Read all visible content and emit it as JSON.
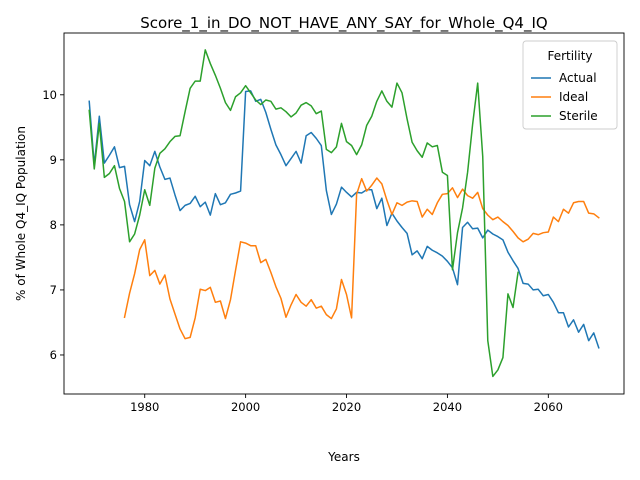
{
  "chart_data": {
    "type": "line",
    "title": "Score_1_in_DO_NOT_HAVE_ANY_SAY_for_Whole_Q4_IQ",
    "xlabel": "Years",
    "ylabel": "% of Whole Q4_IQ Population",
    "xlim": [
      1964,
      2075
    ],
    "ylim": [
      5.4,
      10.95
    ],
    "xticks": [
      1980,
      2000,
      2020,
      2040,
      2060
    ],
    "yticks": [
      6,
      7,
      8,
      9,
      10
    ],
    "grid": false,
    "legend": {
      "title": "Fertility",
      "placement": "top-right"
    },
    "series": [
      {
        "name": "Actual",
        "color": "#1f77b4",
        "x": [
          1969,
          1970,
          1971,
          1972,
          1973,
          1974,
          1975,
          1976,
          1977,
          1978,
          1979,
          1980,
          1981,
          1982,
          1983,
          1984,
          1985,
          1986,
          1987,
          1988,
          1989,
          1990,
          1991,
          1992,
          1993,
          1994,
          1995,
          1996,
          1997,
          1998,
          1999,
          2000,
          2001,
          2002,
          2003,
          2004,
          2005,
          2006,
          2007,
          2008,
          2009,
          2010,
          2011,
          2012,
          2013,
          2014,
          2015,
          2016,
          2017,
          2018,
          2019,
          2020,
          2021,
          2022,
          2023,
          2024,
          2025,
          2026,
          2027,
          2028,
          2029,
          2030,
          2031,
          2032,
          2033,
          2034,
          2035,
          2036,
          2037,
          2038,
          2039,
          2040,
          2041,
          2042,
          2043,
          2044,
          2045,
          2046,
          2047,
          2048,
          2049,
          2050,
          2051,
          2052,
          2053,
          2054,
          2055,
          2056,
          2057,
          2058,
          2059,
          2060,
          2061,
          2062,
          2063,
          2064,
          2065,
          2066,
          2067,
          2068,
          2069,
          2070
        ],
        "values": [
          9.9,
          8.92,
          9.67,
          8.95,
          9.07,
          9.2,
          8.88,
          8.9,
          8.31,
          8.05,
          8.36,
          8.99,
          8.91,
          9.13,
          8.89,
          8.7,
          8.72,
          8.46,
          8.22,
          8.3,
          8.33,
          8.44,
          8.28,
          8.35,
          8.15,
          8.48,
          8.31,
          8.34,
          8.47,
          8.49,
          8.52,
          10.05,
          10.06,
          9.9,
          9.93,
          9.73,
          9.47,
          9.23,
          9.08,
          8.91,
          9.02,
          9.13,
          8.95,
          9.37,
          9.42,
          9.33,
          9.22,
          8.53,
          8.16,
          8.32,
          8.58,
          8.5,
          8.43,
          8.5,
          8.49,
          8.54,
          8.54,
          8.25,
          8.41,
          7.99,
          8.18,
          8.06,
          7.96,
          7.87,
          7.54,
          7.6,
          7.48,
          7.67,
          7.61,
          7.57,
          7.52,
          7.44,
          7.34,
          7.08,
          7.96,
          8.04,
          7.94,
          7.95,
          7.8,
          7.92,
          7.86,
          7.82,
          7.77,
          7.58,
          7.45,
          7.33,
          7.1,
          7.09,
          7.0,
          7.01,
          6.91,
          6.93,
          6.81,
          6.65,
          6.65,
          6.43,
          6.54,
          6.35,
          6.47,
          6.22,
          6.34,
          6.11
        ]
      },
      {
        "name": "Ideal",
        "color": "#ff7f0e",
        "x": [
          1976,
          1977,
          1978,
          1979,
          1980,
          1981,
          1982,
          1983,
          1984,
          1985,
          1986,
          1987,
          1988,
          1989,
          1990,
          1991,
          1992,
          1993,
          1994,
          1995,
          1996,
          1997,
          1998,
          1999,
          2000,
          2001,
          2002,
          2003,
          2004,
          2005,
          2006,
          2007,
          2008,
          2009,
          2010,
          2011,
          2012,
          2013,
          2014,
          2015,
          2016,
          2017,
          2018,
          2019,
          2020,
          2021,
          2022,
          2023,
          2024,
          2025,
          2026,
          2027,
          2028,
          2029,
          2030,
          2031,
          2032,
          2033,
          2034,
          2035,
          2036,
          2037,
          2038,
          2039,
          2040,
          2041,
          2042,
          2043,
          2044,
          2045,
          2046,
          2047,
          2048,
          2049,
          2050,
          2051,
          2052,
          2053,
          2054,
          2055,
          2056,
          2057,
          2058,
          2059,
          2060,
          2061,
          2062,
          2063,
          2064,
          2065,
          2066,
          2067,
          2068,
          2069,
          2070
        ],
        "values": [
          6.58,
          6.95,
          7.25,
          7.62,
          7.77,
          7.22,
          7.3,
          7.09,
          7.23,
          6.86,
          6.63,
          6.4,
          6.25,
          6.27,
          6.57,
          7.01,
          6.99,
          7.04,
          6.81,
          6.83,
          6.56,
          6.85,
          7.3,
          7.74,
          7.72,
          7.68,
          7.68,
          7.42,
          7.47,
          7.27,
          7.05,
          6.87,
          6.58,
          6.77,
          6.93,
          6.81,
          6.75,
          6.85,
          6.72,
          6.75,
          6.62,
          6.56,
          6.71,
          7.16,
          6.93,
          6.57,
          8.47,
          8.71,
          8.52,
          8.61,
          8.72,
          8.63,
          8.38,
          8.16,
          8.34,
          8.3,
          8.35,
          8.37,
          8.36,
          8.12,
          8.24,
          8.16,
          8.34,
          8.47,
          8.48,
          8.57,
          8.42,
          8.55,
          8.45,
          8.41,
          8.5,
          8.25,
          8.15,
          8.08,
          8.12,
          8.05,
          7.99,
          7.9,
          7.8,
          7.74,
          7.78,
          7.87,
          7.85,
          7.88,
          7.89,
          8.12,
          8.05,
          8.24,
          8.18,
          8.34,
          8.36,
          8.36,
          8.18,
          8.17,
          8.11
        ]
      },
      {
        "name": "Sterile",
        "color": "#2ca02c",
        "x": [
          1969,
          1970,
          1971,
          1972,
          1973,
          1974,
          1975,
          1976,
          1977,
          1978,
          1979,
          1980,
          1981,
          1982,
          1983,
          1984,
          1985,
          1986,
          1987,
          1988,
          1989,
          1990,
          1991,
          1992,
          1993,
          1994,
          1995,
          1996,
          1997,
          1998,
          1999,
          2000,
          2001,
          2002,
          2003,
          2004,
          2005,
          2006,
          2007,
          2008,
          2009,
          2010,
          2011,
          2012,
          2013,
          2014,
          2015,
          2016,
          2017,
          2018,
          2019,
          2020,
          2021,
          2022,
          2023,
          2024,
          2025,
          2026,
          2027,
          2028,
          2029,
          2030,
          2031,
          2032,
          2033,
          2034,
          2035,
          2036,
          2037,
          2038,
          2039,
          2040,
          2041,
          2042,
          2043,
          2044,
          2045,
          2046,
          2047,
          2048,
          2049,
          2050,
          2051,
          2052,
          2053,
          2054,
          2055
        ],
        "values": [
          9.76,
          8.86,
          9.56,
          8.73,
          8.79,
          8.91,
          8.56,
          8.36,
          7.74,
          7.86,
          8.15,
          8.54,
          8.3,
          8.87,
          9.1,
          9.17,
          9.28,
          9.36,
          9.37,
          9.74,
          10.1,
          10.21,
          10.21,
          10.69,
          10.48,
          10.3,
          10.1,
          9.88,
          9.76,
          9.97,
          10.03,
          10.14,
          10.03,
          9.92,
          9.85,
          9.92,
          9.9,
          9.78,
          9.8,
          9.74,
          9.66,
          9.72,
          9.84,
          9.88,
          9.83,
          9.71,
          9.75,
          9.16,
          9.11,
          9.2,
          9.56,
          9.28,
          9.22,
          9.08,
          9.23,
          9.53,
          9.67,
          9.9,
          10.06,
          9.9,
          9.81,
          10.18,
          10.03,
          9.63,
          9.27,
          9.14,
          9.04,
          9.26,
          9.2,
          9.22,
          8.81,
          8.76,
          7.31,
          7.88,
          8.26,
          8.81,
          9.55,
          10.18,
          9.05,
          6.22,
          5.67,
          5.77,
          5.96,
          6.94,
          6.73,
          7.27,
          null
        ]
      }
    ]
  }
}
